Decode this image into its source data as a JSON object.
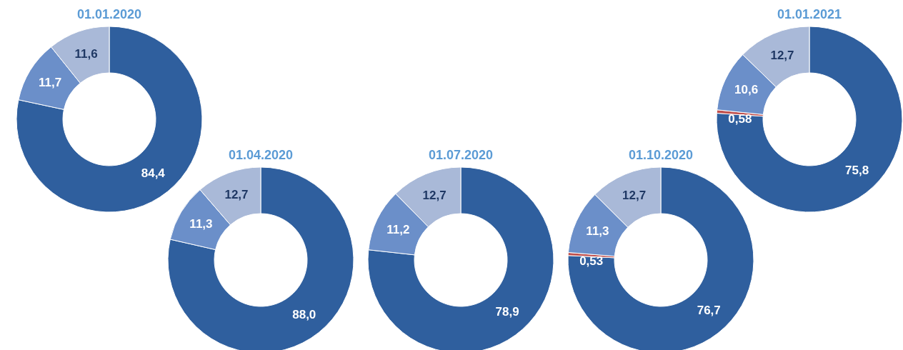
{
  "chart_data": [
    {
      "type": "donut",
      "title": "01.01.2020",
      "categories": [
        null,
        null,
        null
      ],
      "values": [
        84.4,
        11.7,
        11.6
      ],
      "value_labels": [
        "84,4",
        "11,7",
        "11,6"
      ],
      "colors": [
        "#2f5f9e",
        "#6b8fc9",
        "#a9b9d8"
      ]
    },
    {
      "type": "donut",
      "title": "01.04.2020",
      "categories": [
        null,
        null,
        null
      ],
      "values": [
        88.0,
        11.3,
        12.7
      ],
      "value_labels": [
        "88,0",
        "11,3",
        "12,7"
      ],
      "colors": [
        "#2f5f9e",
        "#6b8fc9",
        "#a9b9d8"
      ]
    },
    {
      "type": "donut",
      "title": "01.07.2020",
      "categories": [
        null,
        null,
        null
      ],
      "values": [
        78.9,
        11.2,
        12.7
      ],
      "value_labels": [
        "78,9",
        "11,2",
        "12,7"
      ],
      "colors": [
        "#2f5f9e",
        "#6b8fc9",
        "#a9b9d8"
      ]
    },
    {
      "type": "donut",
      "title": "01.10.2020",
      "categories": [
        null,
        null,
        null,
        null
      ],
      "values": [
        76.7,
        0.53,
        11.3,
        12.7
      ],
      "value_labels": [
        "76,7",
        "0,53",
        "11,3",
        "12,7"
      ],
      "colors": [
        "#2f5f9e",
        "#c0504d",
        "#6b8fc9",
        "#a9b9d8"
      ]
    },
    {
      "type": "donut",
      "title": "01.01.2021",
      "categories": [
        null,
        null,
        null,
        null
      ],
      "values": [
        75.8,
        0.58,
        10.6,
        12.7
      ],
      "value_labels": [
        "75,8",
        "0,58",
        "10,6",
        "12,7"
      ],
      "colors": [
        "#2f5f9e",
        "#c0504d",
        "#6b8fc9",
        "#a9b9d8"
      ]
    }
  ]
}
